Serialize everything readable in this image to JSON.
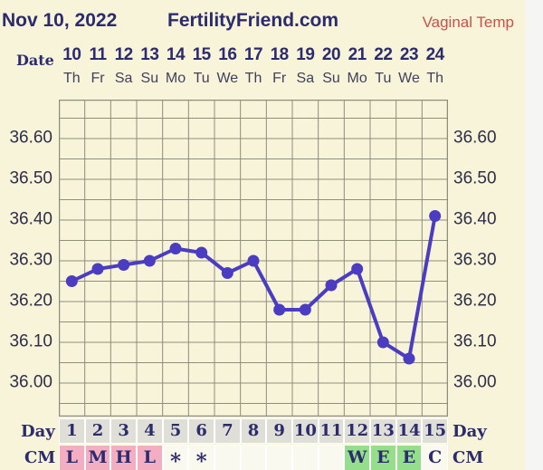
{
  "header": {
    "date": "Nov 10, 2022",
    "site": "FertilityFriend.com",
    "chart_type": "Vaginal Temp"
  },
  "date_row": {
    "label": "Date",
    "dates": [
      "10",
      "11",
      "12",
      "13",
      "14",
      "15",
      "16",
      "17",
      "18",
      "19",
      "20",
      "21",
      "22",
      "23",
      "24"
    ],
    "weekdays": [
      "Th",
      "Fr",
      "Sa",
      "Su",
      "Mo",
      "Tu",
      "We",
      "Th",
      "Fr",
      "Sa",
      "Su",
      "Mo",
      "Tu",
      "We",
      "Th"
    ]
  },
  "chart_data": {
    "type": "line",
    "title": "Vaginal Temp",
    "xlabel": "Day",
    "x": [
      1,
      2,
      3,
      4,
      5,
      6,
      7,
      8,
      9,
      10,
      11,
      12,
      13,
      14,
      15
    ],
    "values": [
      36.25,
      36.28,
      36.29,
      36.3,
      36.33,
      36.32,
      36.27,
      36.3,
      36.18,
      36.18,
      36.24,
      36.28,
      36.1,
      36.06,
      36.41
    ],
    "ylim": [
      35.92,
      36.69
    ],
    "yticks": [
      36.6,
      36.5,
      36.4,
      36.3,
      36.2,
      36.1,
      36.0
    ],
    "ytick_labels": [
      "36.60",
      "36.50",
      "36.40",
      "36.30",
      "36.20",
      "36.10",
      "36.00"
    ],
    "minor_grid_step": 0.05,
    "grid": true,
    "legend": "none",
    "line_color": "#4b3dc1"
  },
  "day_row": {
    "label": "Day",
    "days": [
      "1",
      "2",
      "3",
      "4",
      "5",
      "6",
      "7",
      "8",
      "9",
      "10",
      "11",
      "12",
      "13",
      "14",
      "15"
    ]
  },
  "cm_row": {
    "label": "CM",
    "cells": [
      {
        "label": "L",
        "type": "pink"
      },
      {
        "label": "M",
        "type": "pink"
      },
      {
        "label": "H",
        "type": "pink"
      },
      {
        "label": "L",
        "type": "pink"
      },
      {
        "label": "*",
        "type": "plain"
      },
      {
        "label": "*",
        "type": "plain"
      },
      {
        "label": "",
        "type": "plain"
      },
      {
        "label": "",
        "type": "plain"
      },
      {
        "label": "",
        "type": "plain"
      },
      {
        "label": "",
        "type": "plain"
      },
      {
        "label": "",
        "type": "plain"
      },
      {
        "label": "W",
        "type": "green"
      },
      {
        "label": "E",
        "type": "green"
      },
      {
        "label": "E",
        "type": "green"
      },
      {
        "label": "C",
        "type": "plain"
      }
    ]
  },
  "colors": {
    "background": "#f8f4d9",
    "right_margin": "#f5f5f4",
    "navy": "#2b2b6e",
    "red": "#c9504b",
    "grid": "#8e8e7f",
    "line": "#4b3dc1",
    "day_cell": "#dfdfd8",
    "pink": "#f3aec2",
    "green": "#95df8c",
    "plain_cell": "#faf9ef",
    "cell_border": "#ffffff",
    "weekday_text": "#40405e",
    "axis_text": "#2e2e4a"
  }
}
